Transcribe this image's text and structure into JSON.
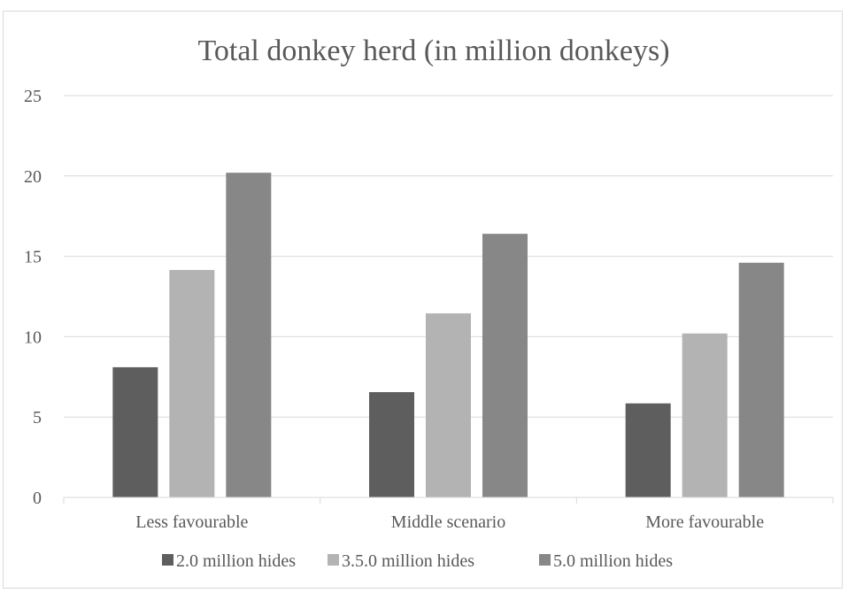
{
  "chart_data": {
    "type": "bar",
    "title": "Total donkey herd (in million donkeys)",
    "xlabel": "",
    "ylabel": "",
    "categories": [
      "Less favourable",
      "Middle scenario",
      "More favourable"
    ],
    "ylim": [
      0,
      25
    ],
    "yticks": [
      "0",
      "5",
      "10",
      "15",
      "20",
      "25"
    ],
    "grid": true,
    "legend_position": "bottom",
    "series": [
      {
        "name": "2.0 million hides",
        "color": "#5e5e5e",
        "values": [
          8.1,
          6.55,
          5.85
        ]
      },
      {
        "name": "3.5.0 million hides",
        "color": "#b3b3b3",
        "values": [
          14.15,
          11.45,
          10.2
        ]
      },
      {
        "name": "5.0 million hides",
        "color": "#878787",
        "values": [
          20.2,
          16.4,
          14.6
        ]
      }
    ]
  }
}
